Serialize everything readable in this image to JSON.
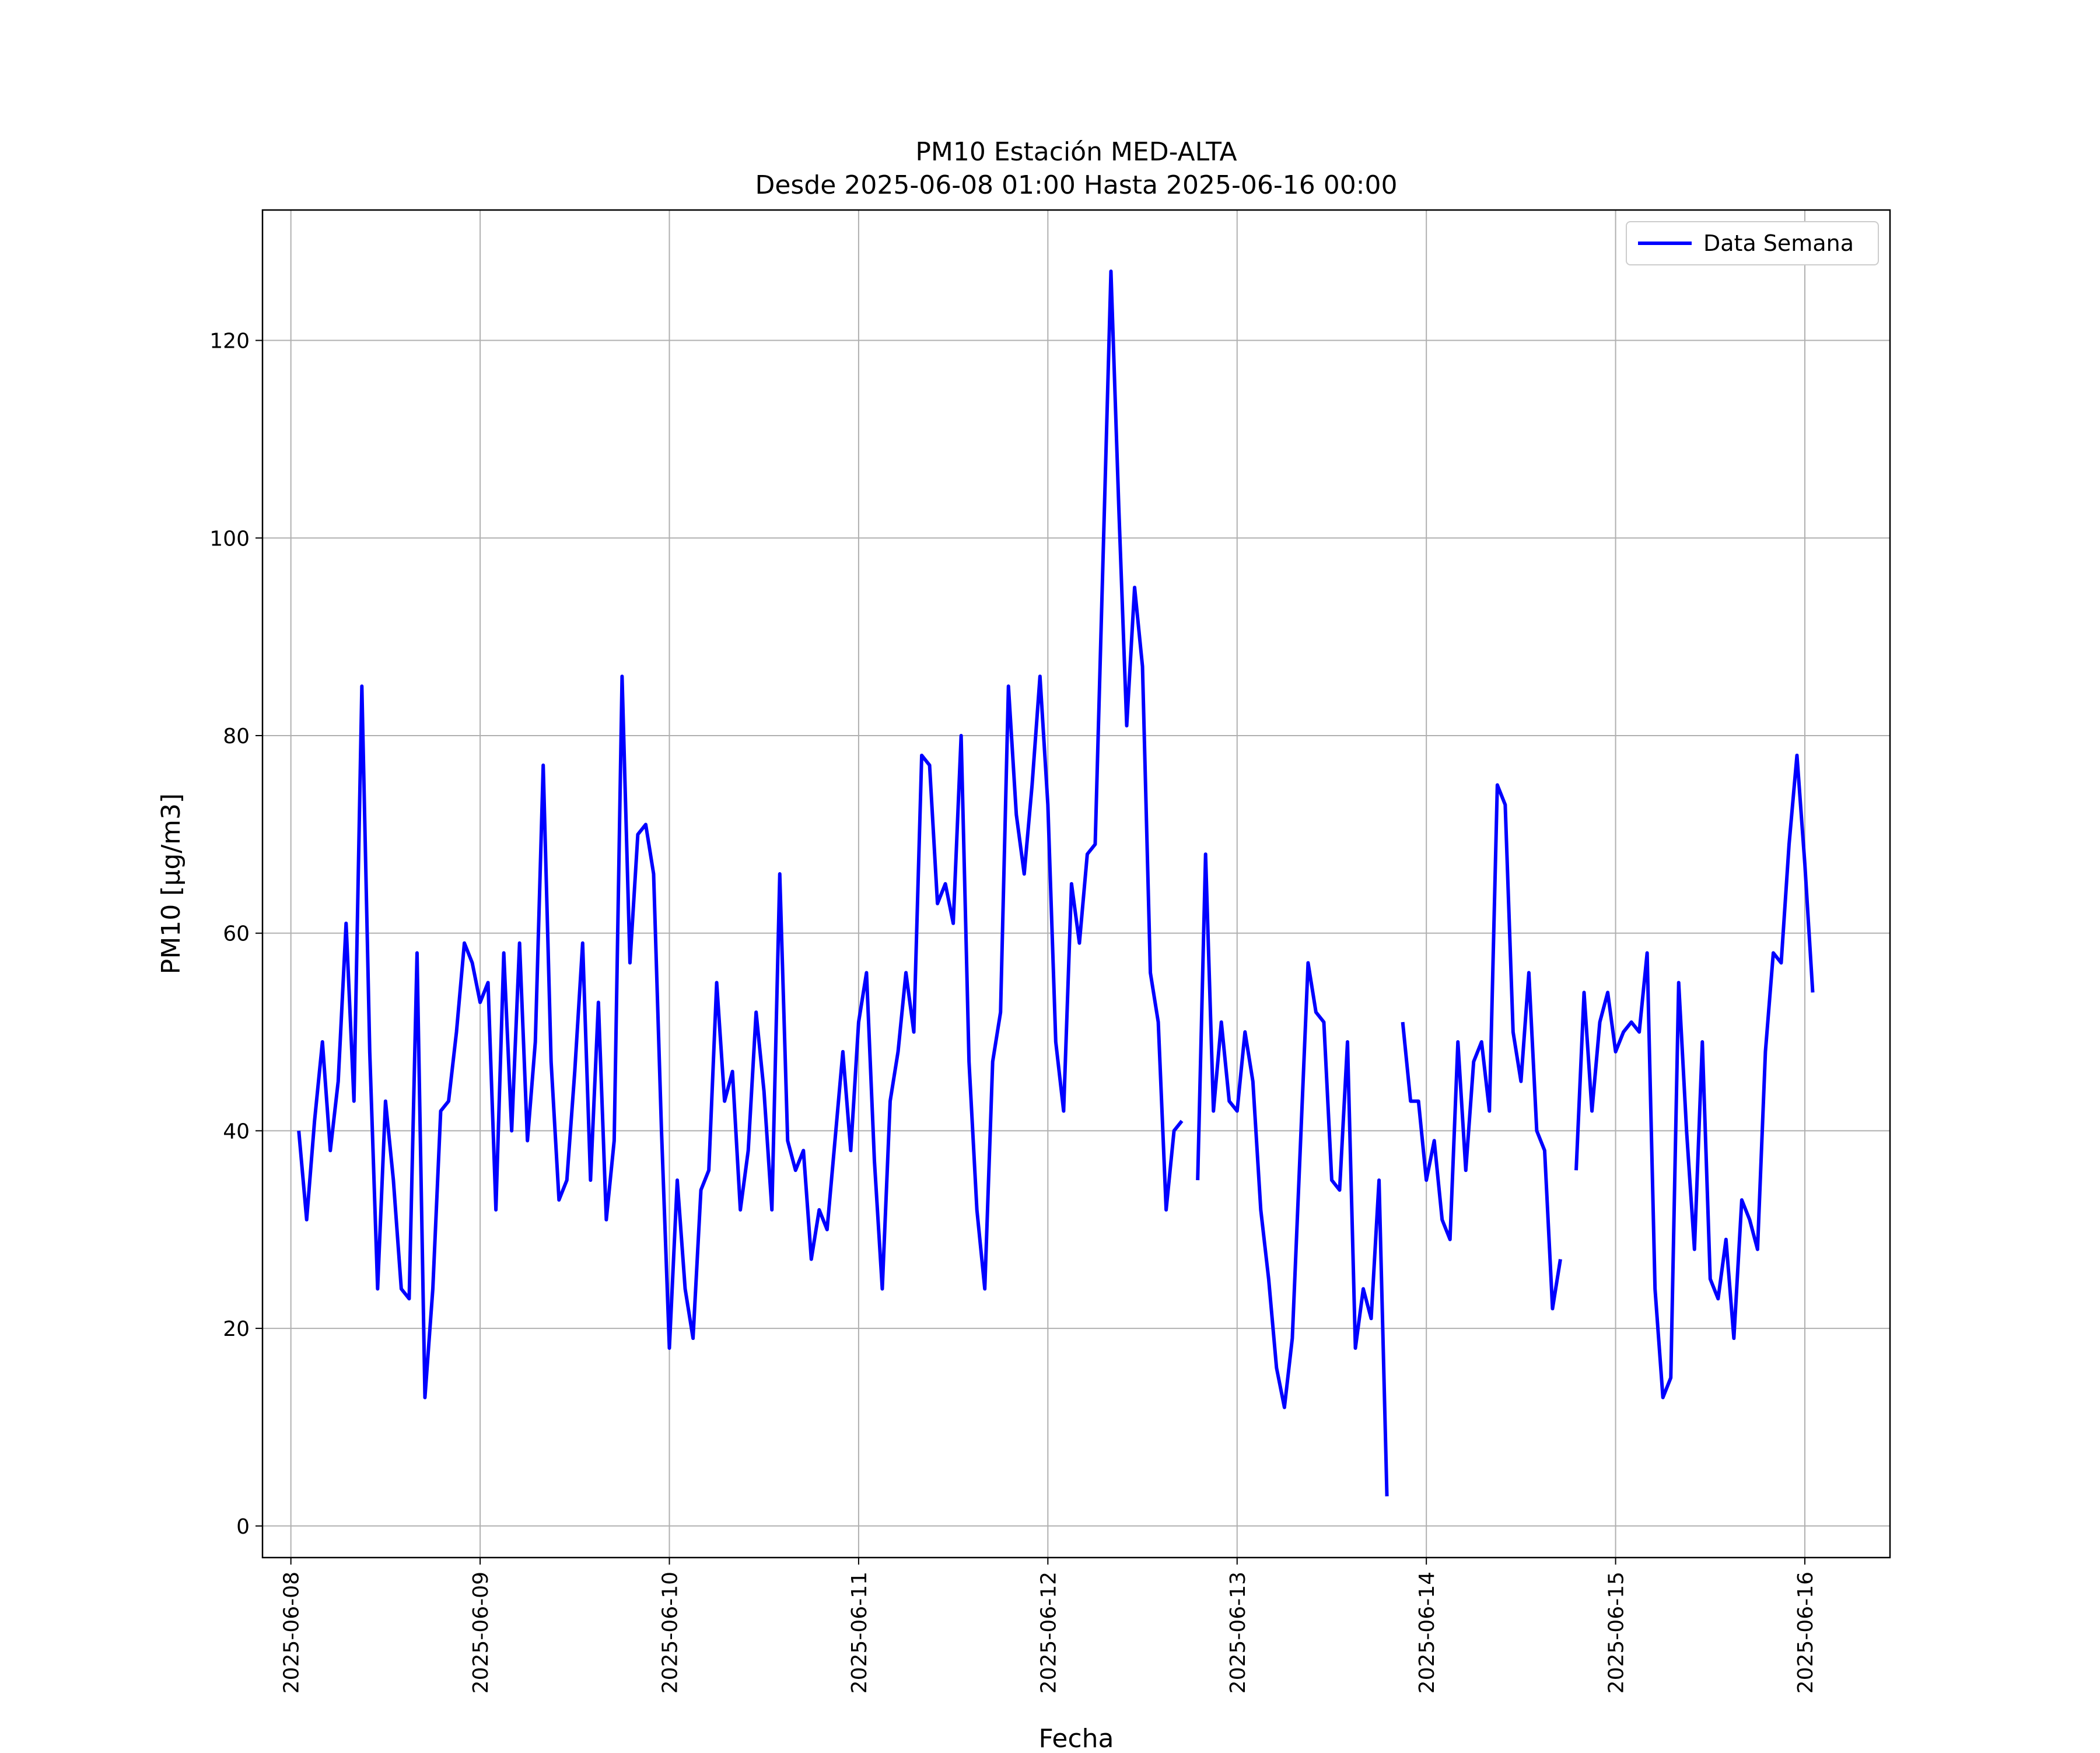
{
  "colors": {
    "line": "#0000ff",
    "grid": "#b0b0b0",
    "axes": "#000000",
    "background": "#ffffff"
  },
  "chart_data": {
    "type": "line",
    "title": "PM10 Estación MED-ALTA",
    "subtitle": "Desde 2025-06-08 01:00 Hasta 2025-06-16 00:00",
    "xlabel": "Fecha",
    "ylabel": "PM10 [μg/m3]",
    "xlim": [
      "2025-06-07 20:24",
      "2025-06-16 10:48"
    ],
    "ylim": [
      -3.2,
      133.2
    ],
    "x_ticks": [
      "2025-06-08",
      "2025-06-09",
      "2025-06-10",
      "2025-06-11",
      "2025-06-12",
      "2025-06-13",
      "2025-06-14",
      "2025-06-15",
      "2025-06-16"
    ],
    "y_ticks": [
      0,
      20,
      40,
      60,
      80,
      100,
      120
    ],
    "grid": true,
    "legend_position": "top-right",
    "series": [
      {
        "name": "Data Semana",
        "start": "2025-06-08 01:00",
        "interval_hours": 1,
        "values": [
          40,
          31,
          41,
          49,
          38,
          45,
          61,
          43,
          85,
          48,
          24,
          43,
          35,
          24,
          23,
          58,
          13,
          24,
          42,
          43,
          50,
          59,
          57,
          53,
          55,
          32,
          58,
          40,
          59,
          39,
          49,
          77,
          47,
          33,
          35,
          46,
          59,
          35,
          53,
          31,
          39,
          86,
          57,
          70,
          71,
          66,
          40,
          18,
          35,
          24,
          19,
          34,
          36,
          55,
          43,
          46,
          32,
          38,
          52,
          44,
          32,
          66,
          39,
          36,
          38,
          27,
          32,
          30,
          39,
          48,
          38,
          51,
          56,
          37,
          24,
          43,
          48,
          56,
          50,
          78,
          77,
          63,
          65,
          61,
          80,
          47,
          32,
          24,
          47,
          52,
          85,
          72,
          66,
          75,
          86,
          73,
          49,
          42,
          65,
          59,
          68,
          69,
          98,
          127,
          103,
          81,
          95,
          87,
          56,
          51,
          32,
          40,
          41,
          null,
          35,
          68,
          42,
          51,
          43,
          42,
          50,
          45,
          32,
          25,
          16,
          12,
          19,
          38,
          57,
          52,
          51,
          35,
          34,
          49,
          18,
          24,
          21,
          35,
          3,
          null,
          51,
          43,
          43,
          35,
          39,
          31,
          29,
          49,
          36,
          47,
          49,
          42,
          75,
          73,
          50,
          45,
          56,
          40,
          38,
          22,
          27,
          null,
          36,
          54,
          42,
          51,
          54,
          48,
          50,
          51,
          50,
          58,
          24,
          13,
          15,
          55,
          40,
          28,
          49,
          25,
          23,
          29,
          19,
          33,
          31,
          28,
          48,
          58,
          57,
          69,
          78,
          67,
          54
        ]
      }
    ]
  }
}
